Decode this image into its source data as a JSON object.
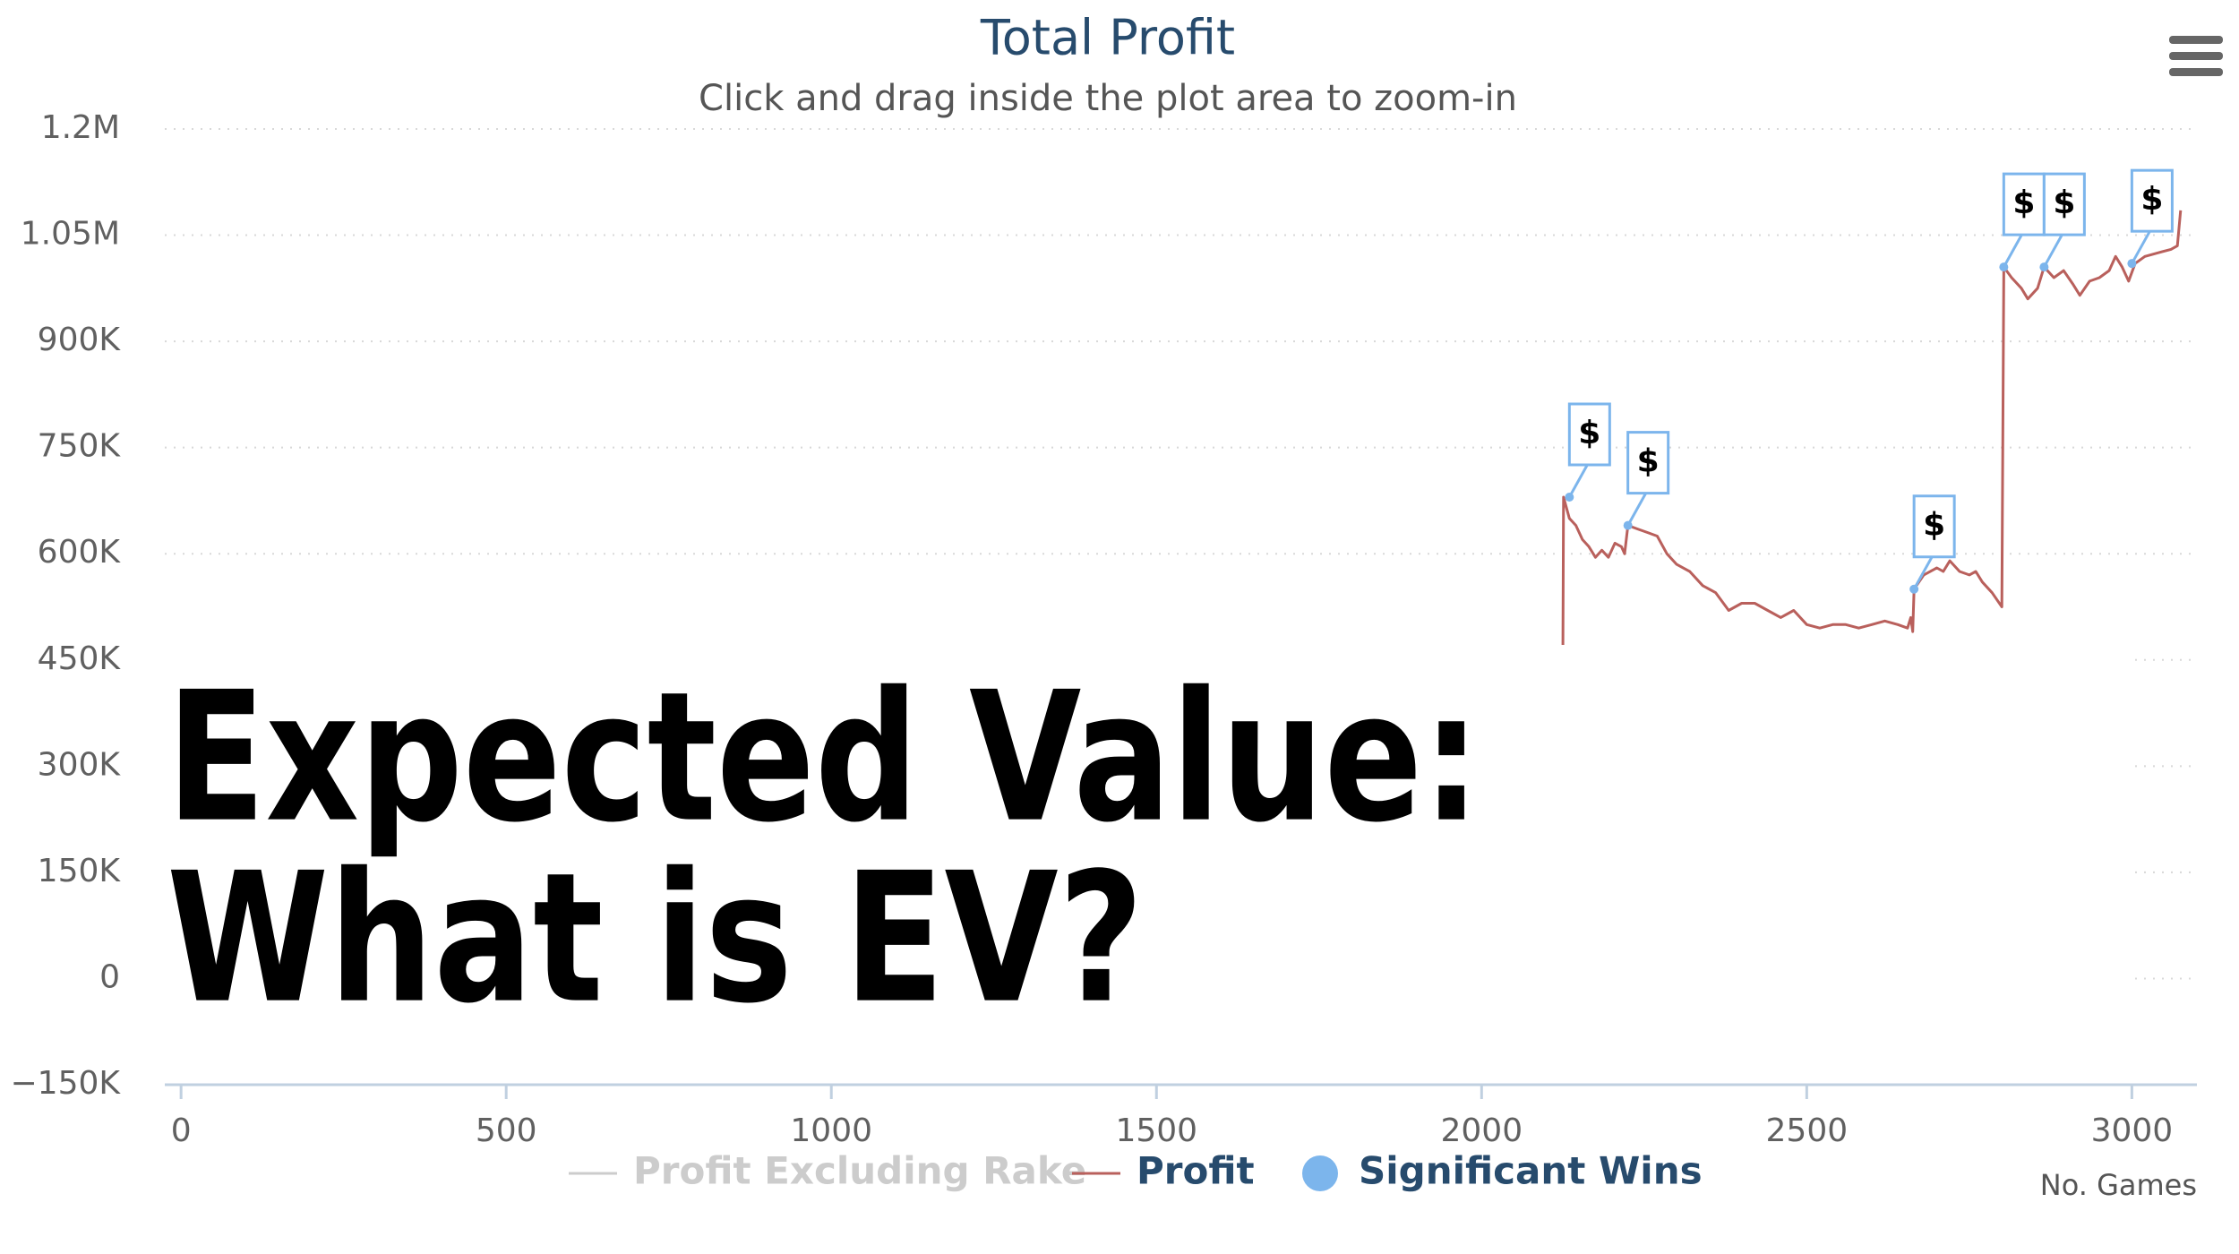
{
  "chart_data": {
    "type": "line",
    "title": "Total Profit",
    "subtitle": "Click and drag inside the plot area to zoom-in",
    "x_label": "No. Games",
    "annotations": [
      "Expected Value:",
      "What is EV?"
    ],
    "xlim": [
      -25,
      3100
    ],
    "xticks": [
      0,
      500,
      1000,
      1500,
      2000,
      2500,
      3000
    ],
    "ylim": [
      -150000,
      1200000
    ],
    "yticks": [
      {
        "value": -150000,
        "label": "−150K"
      },
      0,
      {
        "value": 150000,
        "label": "150K"
      },
      {
        "value": 300000,
        "label": "300K"
      },
      {
        "value": 450000,
        "label": "450K"
      },
      {
        "value": 600000,
        "label": "600K"
      },
      {
        "value": 750000,
        "label": "750K"
      },
      {
        "value": 900000,
        "label": "900K"
      },
      {
        "value": 1050000,
        "label": "1.05M"
      },
      {
        "value": 1200000,
        "label": "1.2M"
      }
    ],
    "grid": true,
    "series": [
      {
        "name": "Profit Excluding Rake",
        "color": "#cccccc",
        "visible": false
      },
      {
        "name": "Profit",
        "color": "#b9605c",
        "x": [
          2125,
          2126,
          2135,
          2145,
          2155,
          2165,
          2175,
          2185,
          2195,
          2205,
          2215,
          2220,
          2225,
          2240,
          2255,
          2270,
          2285,
          2300,
          2320,
          2340,
          2360,
          2380,
          2400,
          2420,
          2440,
          2460,
          2480,
          2500,
          2520,
          2540,
          2560,
          2580,
          2600,
          2620,
          2640,
          2655,
          2660,
          2663,
          2665,
          2680,
          2700,
          2710,
          2720,
          2735,
          2750,
          2760,
          2770,
          2785,
          2800,
          2803,
          2815,
          2830,
          2840,
          2855,
          2865,
          2880,
          2895,
          2910,
          2920,
          2935,
          2950,
          2965,
          2975,
          2985,
          2995,
          3005,
          3020,
          3040,
          3060,
          3070,
          3075
        ],
        "values": [
          471000,
          680000,
          650000,
          640000,
          620000,
          610000,
          595000,
          605000,
          595000,
          615000,
          610000,
          600000,
          640000,
          635000,
          630000,
          625000,
          600000,
          585000,
          575000,
          555000,
          545000,
          520000,
          530000,
          530000,
          520000,
          510000,
          520000,
          500000,
          495000,
          500000,
          500000,
          495000,
          500000,
          505000,
          500000,
          495000,
          510000,
          490000,
          550000,
          570000,
          580000,
          575000,
          590000,
          575000,
          570000,
          575000,
          560000,
          545000,
          525000,
          1005000,
          990000,
          975000,
          960000,
          975000,
          1005000,
          990000,
          1000000,
          980000,
          965000,
          985000,
          990000,
          1000000,
          1020000,
          1005000,
          985000,
          1010000,
          1020000,
          1025000,
          1030000,
          1035000,
          1085000
        ]
      },
      {
        "name": "Significant Wins",
        "color": "#7cb5ec",
        "flag_text": "$",
        "x": [
          2135,
          2225,
          2665,
          2803,
          2865,
          3000
        ],
        "values": [
          680000,
          640000,
          550000,
          1005000,
          1005000,
          1010000
        ]
      }
    ]
  }
}
